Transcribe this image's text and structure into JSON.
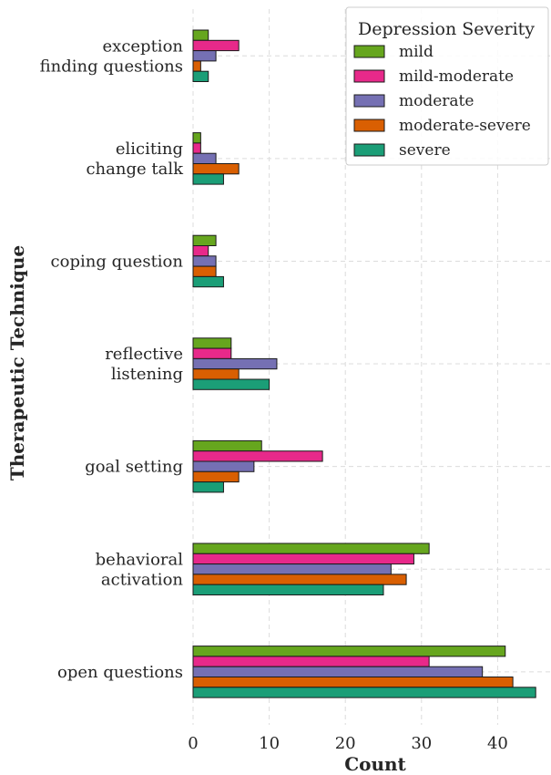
{
  "chart_data": {
    "type": "bar",
    "orientation": "horizontal",
    "categories": [
      [
        "exception",
        "finding questions"
      ],
      [
        "eliciting",
        "change talk"
      ],
      [
        "coping question"
      ],
      [
        "reflective",
        "listening"
      ],
      [
        "goal setting"
      ],
      [
        "behavioral",
        "activation"
      ],
      [
        "open questions"
      ]
    ],
    "series": [
      {
        "name": "mild",
        "color": "#66a61e",
        "values": [
          2,
          1,
          3,
          5,
          9,
          31,
          41
        ]
      },
      {
        "name": "mild-moderate",
        "color": "#e7298a",
        "values": [
          6,
          1,
          2,
          5,
          17,
          29,
          31
        ]
      },
      {
        "name": "moderate",
        "color": "#7570b3",
        "values": [
          3,
          3,
          3,
          11,
          8,
          26,
          38
        ]
      },
      {
        "name": "moderate-severe",
        "color": "#d95f02",
        "values": [
          1,
          6,
          3,
          6,
          6,
          28,
          42
        ]
      },
      {
        "name": "severe",
        "color": "#1b9e77",
        "values": [
          2,
          4,
          4,
          10,
          4,
          25,
          45
        ]
      }
    ],
    "xlabel": "Count",
    "ylabel": "Therapeutic Technique",
    "xlim": [
      0,
      47
    ],
    "xticks": [
      0,
      10,
      20,
      30,
      40
    ],
    "grid": true,
    "legend": {
      "title": "Depression Severity",
      "placement": "top-right"
    }
  }
}
